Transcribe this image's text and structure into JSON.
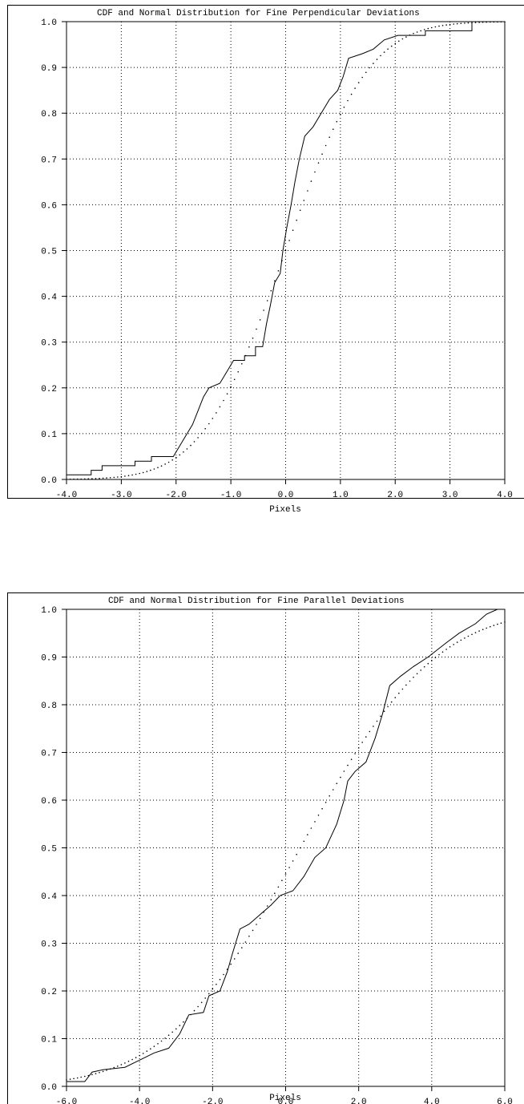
{
  "chart_data": [
    {
      "type": "line",
      "title": "CDF and Normal Distribution for Fine Perpendicular Deviations",
      "xlabel": "Pixels",
      "ylabel": "",
      "xlim": [
        -4.0,
        4.0
      ],
      "ylim": [
        0.0,
        1.0
      ],
      "x_tick_labels": [
        "-4.0",
        "-3.0",
        "-2.0",
        "-1.0",
        "0.0",
        "1.0",
        "2.0",
        "3.0",
        "4.0"
      ],
      "y_tick_labels": [
        "0.0",
        "0.1",
        "0.2",
        "0.3",
        "0.4",
        "0.5",
        "0.6",
        "0.7",
        "0.8",
        "0.9",
        "1.0"
      ],
      "grid": true,
      "series": [
        {
          "style": "step-solid",
          "points": [
            [
              -4.0,
              0.0
            ],
            [
              -4.0,
              0.01
            ],
            [
              -3.55,
              0.01
            ],
            [
              -3.55,
              0.02
            ],
            [
              -3.35,
              0.02
            ],
            [
              -3.35,
              0.03
            ],
            [
              -2.75,
              0.03
            ],
            [
              -2.75,
              0.04
            ],
            [
              -2.45,
              0.04
            ],
            [
              -2.45,
              0.05
            ],
            [
              -2.05,
              0.05
            ],
            [
              -1.95,
              0.07
            ],
            [
              -1.85,
              0.09
            ],
            [
              -1.7,
              0.12
            ],
            [
              -1.6,
              0.15
            ],
            [
              -1.5,
              0.18
            ],
            [
              -1.4,
              0.2
            ],
            [
              -1.2,
              0.21
            ],
            [
              -1.05,
              0.24
            ],
            [
              -0.95,
              0.26
            ],
            [
              -0.75,
              0.26
            ],
            [
              -0.75,
              0.27
            ],
            [
              -0.55,
              0.27
            ],
            [
              -0.55,
              0.29
            ],
            [
              -0.42,
              0.29
            ],
            [
              -0.35,
              0.34
            ],
            [
              -0.28,
              0.38
            ],
            [
              -0.2,
              0.43
            ],
            [
              -0.1,
              0.45
            ],
            [
              -0.05,
              0.5
            ],
            [
              0.02,
              0.55
            ],
            [
              0.1,
              0.6
            ],
            [
              0.17,
              0.65
            ],
            [
              0.25,
              0.7
            ],
            [
              0.35,
              0.75
            ],
            [
              0.5,
              0.77
            ],
            [
              0.65,
              0.8
            ],
            [
              0.8,
              0.83
            ],
            [
              0.95,
              0.85
            ],
            [
              1.05,
              0.88
            ],
            [
              1.15,
              0.92
            ],
            [
              1.4,
              0.93
            ],
            [
              1.6,
              0.94
            ],
            [
              1.8,
              0.96
            ],
            [
              2.05,
              0.97
            ],
            [
              2.55,
              0.97
            ],
            [
              2.55,
              0.98
            ],
            [
              3.4,
              0.98
            ],
            [
              3.4,
              1.0
            ],
            [
              4.0,
              1.0
            ]
          ]
        },
        {
          "style": "dotted",
          "mean": 0.0,
          "sd": 1.2
        }
      ]
    },
    {
      "type": "line",
      "title": "CDF and Normal Distribution for Fine Parallel Deviations",
      "xlabel": "Pixels",
      "ylabel": "",
      "xlim": [
        -6.0,
        6.0
      ],
      "ylim": [
        0.0,
        1.0
      ],
      "x_tick_labels": [
        "-6.0",
        "-4.0",
        "-2.0",
        "0.0",
        "2.0",
        "4.0",
        "6.0"
      ],
      "y_tick_labels": [
        "0.0",
        "0.1",
        "0.2",
        "0.3",
        "0.4",
        "0.5",
        "0.6",
        "0.7",
        "0.8",
        "0.9",
        "1.0"
      ],
      "grid": true,
      "series": [
        {
          "style": "step-solid",
          "points": [
            [
              -6.0,
              0.0
            ],
            [
              -6.0,
              0.01
            ],
            [
              -5.5,
              0.01
            ],
            [
              -5.3,
              0.03
            ],
            [
              -5.0,
              0.035
            ],
            [
              -4.4,
              0.04
            ],
            [
              -4.0,
              0.055
            ],
            [
              -3.6,
              0.07
            ],
            [
              -3.2,
              0.08
            ],
            [
              -2.9,
              0.11
            ],
            [
              -2.65,
              0.15
            ],
            [
              -2.25,
              0.155
            ],
            [
              -2.1,
              0.19
            ],
            [
              -1.8,
              0.2
            ],
            [
              -1.6,
              0.24
            ],
            [
              -1.45,
              0.28
            ],
            [
              -1.25,
              0.33
            ],
            [
              -1.0,
              0.34
            ],
            [
              -0.7,
              0.36
            ],
            [
              -0.4,
              0.38
            ],
            [
              -0.15,
              0.4
            ],
            [
              0.2,
              0.41
            ],
            [
              0.5,
              0.44
            ],
            [
              0.8,
              0.48
            ],
            [
              1.1,
              0.5
            ],
            [
              1.4,
              0.55
            ],
            [
              1.6,
              0.6
            ],
            [
              1.7,
              0.64
            ],
            [
              1.9,
              0.66
            ],
            [
              2.2,
              0.68
            ],
            [
              2.45,
              0.73
            ],
            [
              2.65,
              0.78
            ],
            [
              2.85,
              0.84
            ],
            [
              3.15,
              0.86
            ],
            [
              3.5,
              0.88
            ],
            [
              3.9,
              0.9
            ],
            [
              4.4,
              0.93
            ],
            [
              4.75,
              0.95
            ],
            [
              5.2,
              0.97
            ],
            [
              5.5,
              0.99
            ],
            [
              5.8,
              1.0
            ],
            [
              6.0,
              1.0
            ]
          ]
        },
        {
          "style": "dotted",
          "mean": 0.4,
          "sd": 2.9
        }
      ]
    }
  ]
}
